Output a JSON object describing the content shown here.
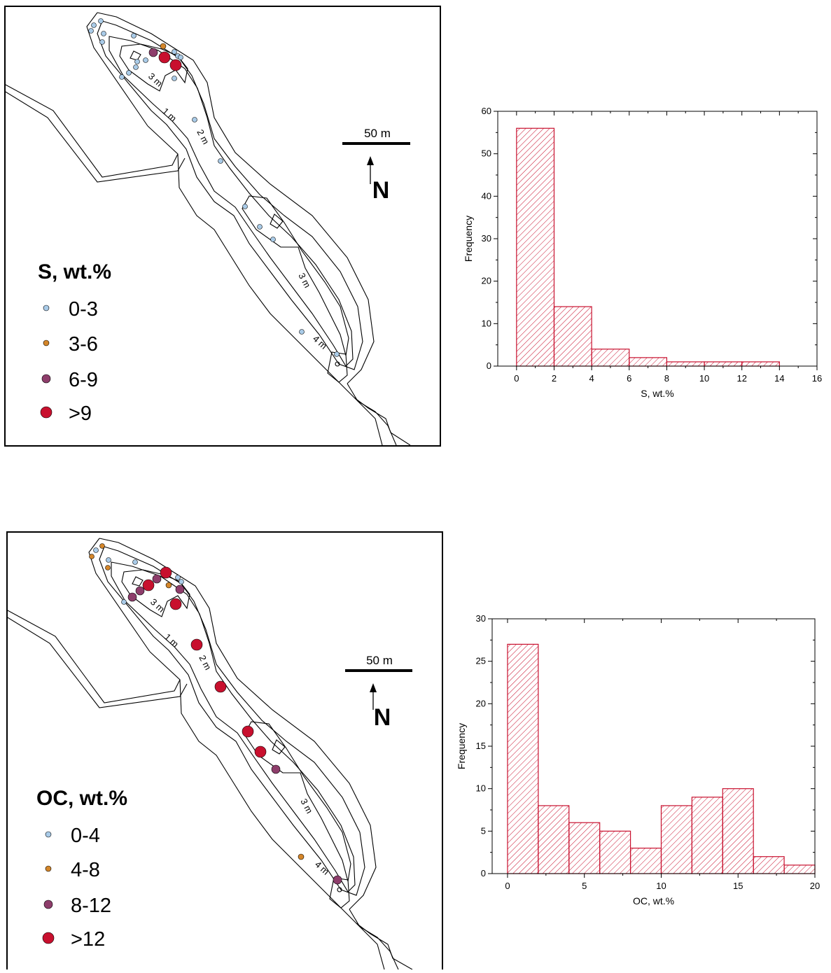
{
  "maps": [
    {
      "id": "s",
      "legend_title": "S, wt.%",
      "legend_items": [
        {
          "label": "0-3",
          "color": "#a9cbe8",
          "size": "small"
        },
        {
          "label": "3-6",
          "color": "#d4862a",
          "size": "small"
        },
        {
          "label": "6-9",
          "color": "#8e3d6b",
          "size": "medium"
        },
        {
          "label": ">9",
          "color": "#c8102e",
          "size": "large"
        }
      ],
      "scale_label": "50 m",
      "north_label": "N",
      "contour_labels": [
        "1 m",
        "2 m",
        "3 m",
        "3 m",
        "4 m"
      ]
    },
    {
      "id": "oc",
      "legend_title": "OC, wt.%",
      "legend_items": [
        {
          "label": "0-4",
          "color": "#a9cbe8",
          "size": "small"
        },
        {
          "label": "4-8",
          "color": "#d4862a",
          "size": "small"
        },
        {
          "label": "8-12",
          "color": "#8e3d6b",
          "size": "medium"
        },
        {
          "label": ">12",
          "color": "#c8102e",
          "size": "large"
        }
      ],
      "scale_label": "50 m",
      "north_label": "N",
      "contour_labels": [
        "1 m",
        "2 m",
        "3 m",
        "3 m",
        "4 m"
      ]
    }
  ],
  "chart_data": [
    {
      "type": "bar",
      "bins": [
        [
          0,
          2
        ],
        [
          2,
          4
        ],
        [
          4,
          6
        ],
        [
          6,
          8
        ],
        [
          8,
          10
        ],
        [
          10,
          12
        ],
        [
          12,
          14
        ]
      ],
      "values": [
        56,
        14,
        4,
        2,
        1,
        1,
        1
      ],
      "xlabel": "S, wt.%",
      "ylabel": "Frequency",
      "xlim": [
        -1,
        16
      ],
      "ylim": [
        0,
        60
      ],
      "xticks": [
        0,
        2,
        4,
        6,
        8,
        10,
        12,
        14,
        16
      ],
      "yticks": [
        0,
        10,
        20,
        30,
        40,
        50,
        60
      ],
      "bar_color": "#c8102e"
    },
    {
      "type": "bar",
      "bins": [
        [
          0,
          2
        ],
        [
          2,
          4
        ],
        [
          4,
          6
        ],
        [
          6,
          8
        ],
        [
          8,
          10
        ],
        [
          10,
          12
        ],
        [
          12,
          14
        ],
        [
          14,
          16
        ],
        [
          16,
          18
        ],
        [
          18,
          20
        ]
      ],
      "values": [
        27,
        8,
        6,
        5,
        3,
        8,
        9,
        10,
        2,
        1
      ],
      "xlabel": "OC, wt.%",
      "ylabel": "Frequency",
      "xlim": [
        -1,
        20
      ],
      "ylim": [
        0,
        30
      ],
      "xticks": [
        0,
        5,
        10,
        15,
        20
      ],
      "yticks": [
        0,
        5,
        10,
        15,
        20,
        25,
        30
      ],
      "bar_color": "#c8102e"
    }
  ]
}
